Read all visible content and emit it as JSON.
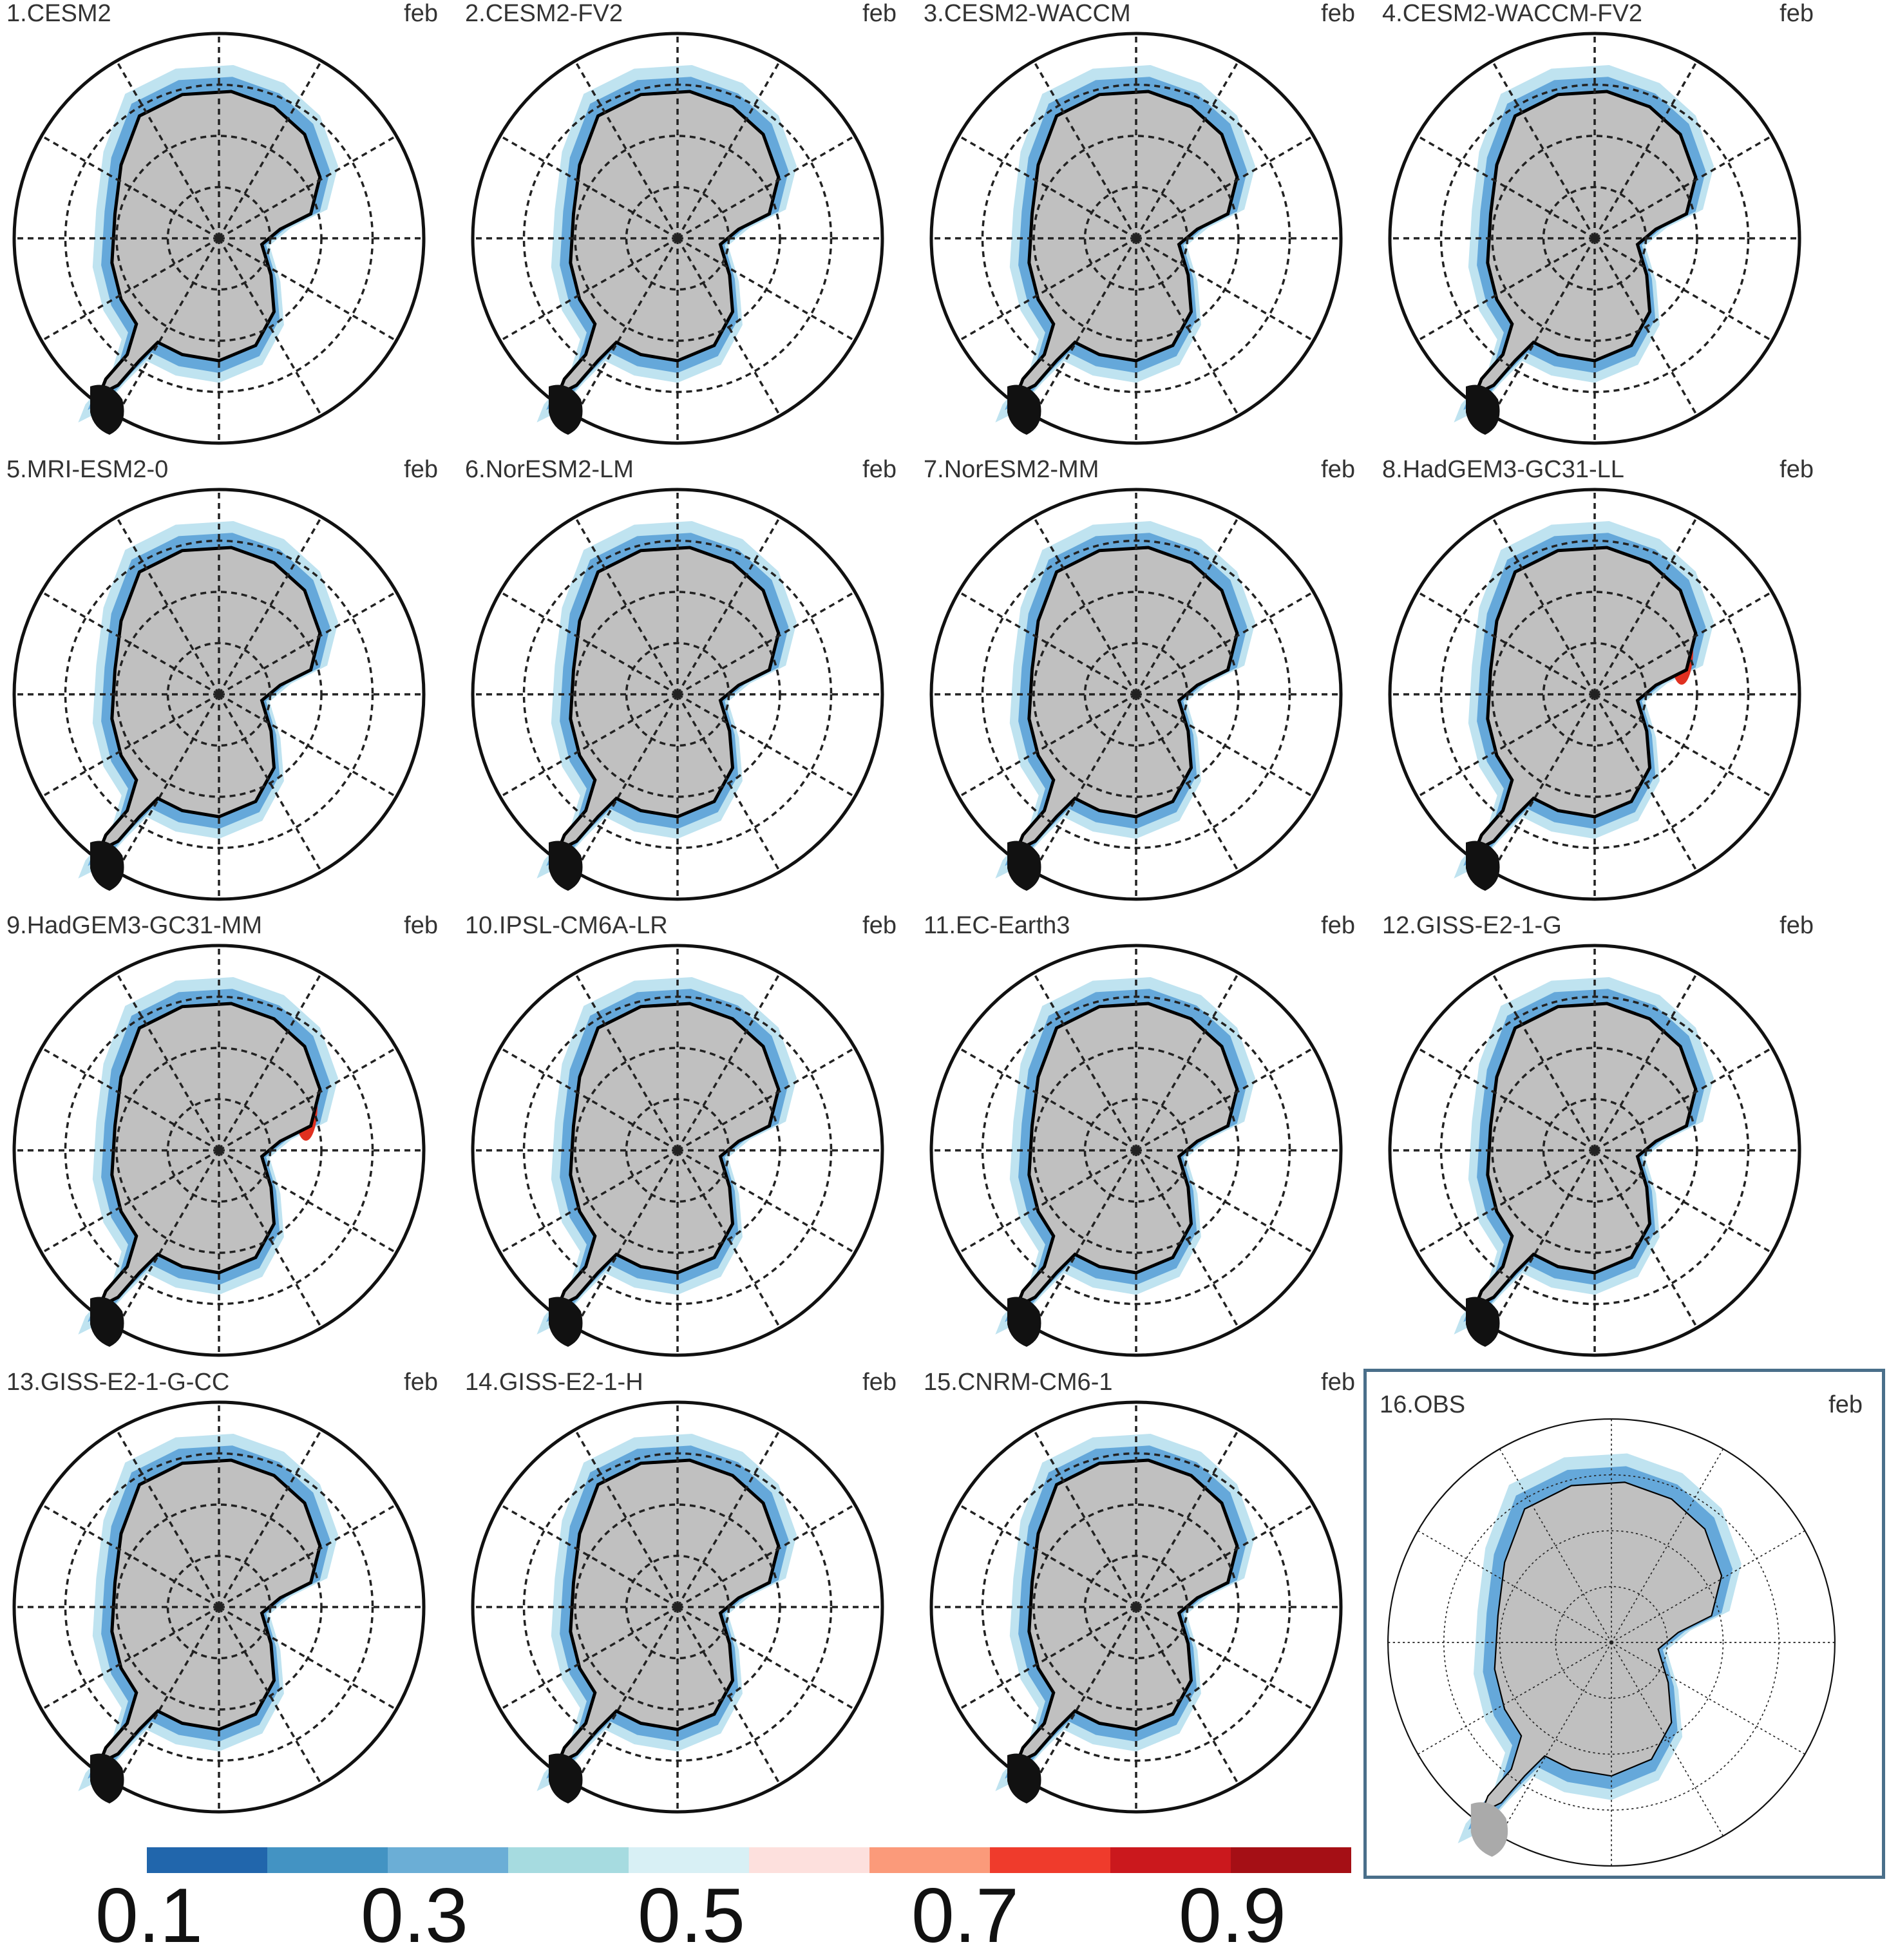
{
  "panels": [
    {
      "title": "1.CESM2",
      "month": "feb"
    },
    {
      "title": "2.CESM2-FV2",
      "month": "feb"
    },
    {
      "title": "3.CESM2-WACCM",
      "month": "feb"
    },
    {
      "title": "4.CESM2-WACCM-FV2",
      "month": "feb"
    },
    {
      "title": "5.MRI-ESM2-0",
      "month": "feb"
    },
    {
      "title": "6.NorESM2-LM",
      "month": "feb"
    },
    {
      "title": "7.NorESM2-MM",
      "month": "feb"
    },
    {
      "title": "8.HadGEM3-GC31-LL",
      "month": "feb"
    },
    {
      "title": "9.HadGEM3-GC31-MM",
      "month": "feb"
    },
    {
      "title": "10.IPSL-CM6A-LR",
      "month": "feb"
    },
    {
      "title": "11.EC-Earth3",
      "month": "feb"
    },
    {
      "title": "12.GISS-E2-1-G",
      "month": "feb"
    },
    {
      "title": "13.GISS-E2-1-G-CC",
      "month": "feb"
    },
    {
      "title": "14.GISS-E2-1-H",
      "month": "feb"
    },
    {
      "title": "15.CNRM-CM6-1",
      "month": "feb"
    }
  ],
  "obs": {
    "title": "16.OBS",
    "month": "feb"
  },
  "colorbar": {
    "colors": [
      "#2166ac",
      "#4393c3",
      "#6baed6",
      "#a6dbe0",
      "#d8f0f5",
      "#fde0dd",
      "#fb9a7a",
      "#ef3b2c",
      "#cb181d",
      "#a50f15"
    ],
    "labels": [
      "0.1",
      "0.3",
      "0.5",
      "0.7",
      "0.9"
    ]
  },
  "colors": {
    "land": "#c0c0c0",
    "blue": "#3f8fd0",
    "lightblue": "#bfe3f0",
    "red": "#e03020",
    "darkred": "#b01010"
  }
}
